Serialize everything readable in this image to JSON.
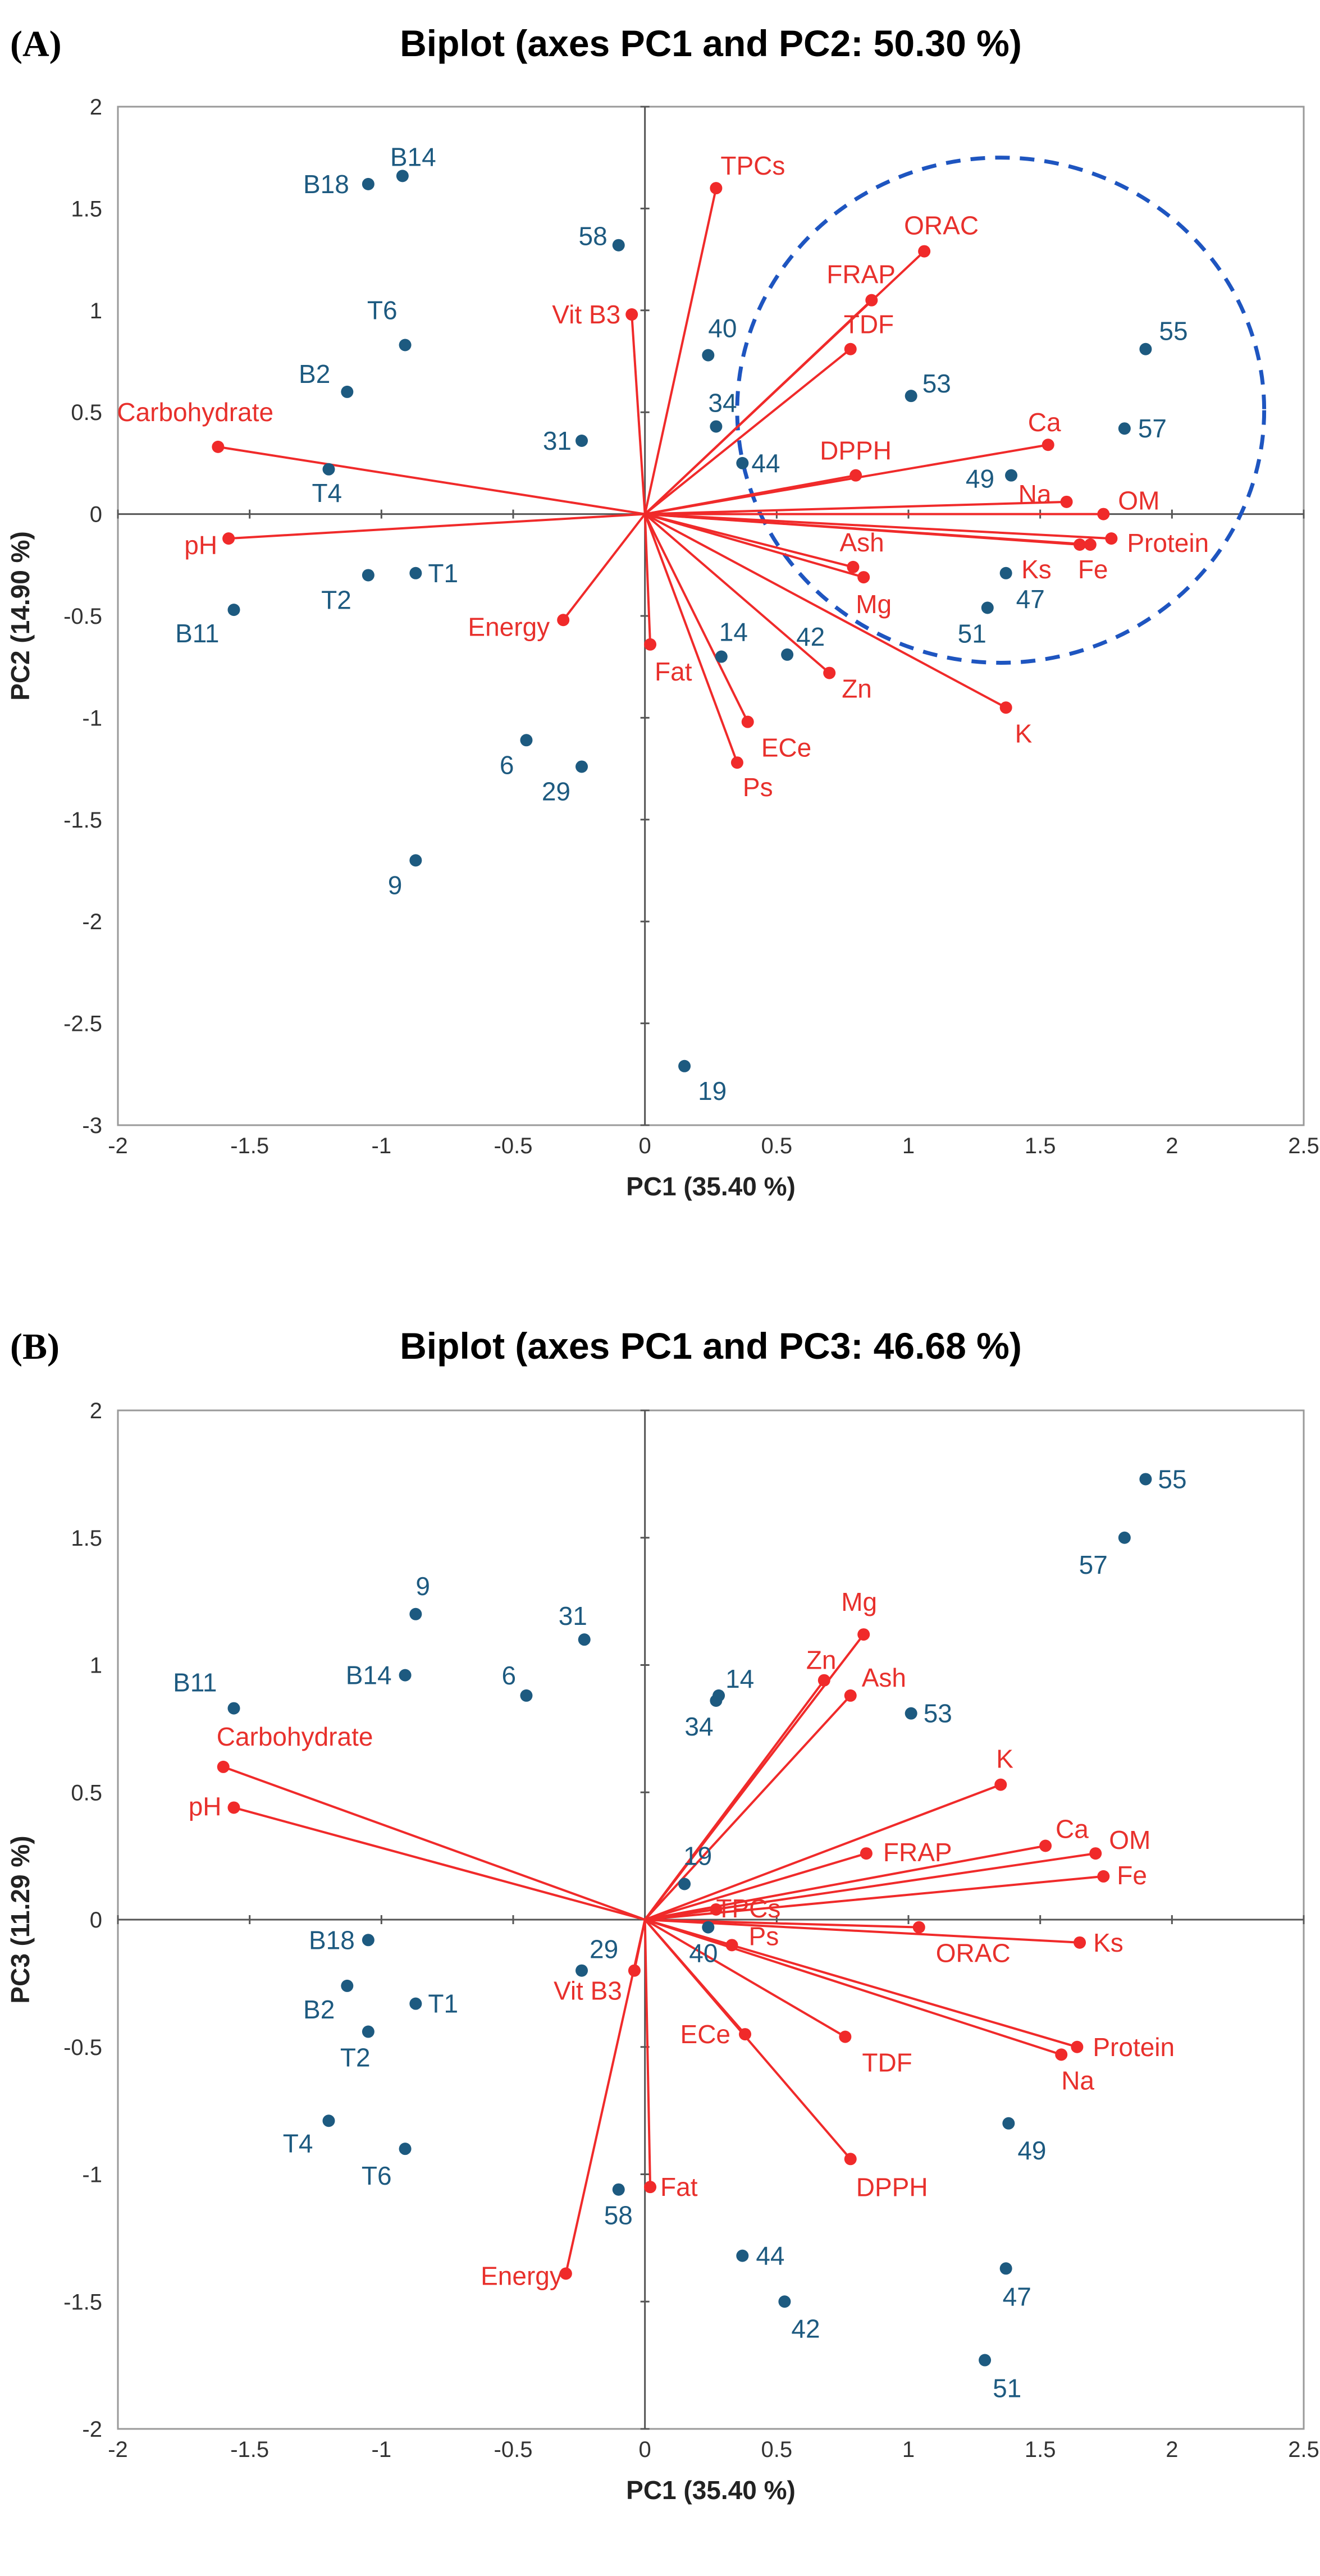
{
  "chart_data": [
    {
      "panel": "(A)",
      "type": "scatter",
      "subtype": "biplot",
      "title": "Biplot (axes PC1 and PC2: 50.30 %)",
      "xlabel": "PC1 (35.40 %)",
      "ylabel": "PC2 (14.90 %)",
      "xlim": [
        -2,
        2.5
      ],
      "ylim": [
        -3,
        2
      ],
      "xticks": [
        "-2",
        "-1.5",
        "-1",
        "-0.5",
        "0",
        "0.5",
        "1",
        "1.5",
        "2",
        "2.5"
      ],
      "yticks": [
        "-3",
        "-2.5",
        "-2",
        "-1.5",
        "-1",
        "-0.5",
        "0",
        "0.5",
        "1",
        "1.5",
        "2"
      ],
      "variables": [
        {
          "name": "TPCs",
          "x": 0.27,
          "y": 1.6
        },
        {
          "name": "ORAC",
          "x": 1.06,
          "y": 1.29
        },
        {
          "name": "FRAP",
          "x": 0.86,
          "y": 1.05
        },
        {
          "name": "TDF",
          "x": 0.78,
          "y": 0.81
        },
        {
          "name": "Vit B3",
          "x": -0.05,
          "y": 0.98
        },
        {
          "name": "Carbohydrate",
          "x": -1.62,
          "y": 0.33
        },
        {
          "name": "pH",
          "x": -1.58,
          "y": -0.12
        },
        {
          "name": "Ca",
          "x": 1.53,
          "y": 0.34
        },
        {
          "name": "DPPH",
          "x": 0.8,
          "y": 0.19
        },
        {
          "name": "Na",
          "x": 1.6,
          "y": 0.06
        },
        {
          "name": "OM",
          "x": 1.74,
          "y": 0.0
        },
        {
          "name": "Protein",
          "x": 1.77,
          "y": -0.12
        },
        {
          "name": "Ks",
          "x": 1.65,
          "y": -0.15
        },
        {
          "name": "Fe",
          "x": 1.69,
          "y": -0.15
        },
        {
          "name": "Ash",
          "x": 0.79,
          "y": -0.26
        },
        {
          "name": "Mg",
          "x": 0.83,
          "y": -0.31
        },
        {
          "name": "Zn",
          "x": 0.7,
          "y": -0.78
        },
        {
          "name": "K",
          "x": 1.37,
          "y": -0.95
        },
        {
          "name": "Energy",
          "x": -0.31,
          "y": -0.52
        },
        {
          "name": "Fat",
          "x": 0.02,
          "y": -0.64
        },
        {
          "name": "ECe",
          "x": 0.39,
          "y": -1.02
        },
        {
          "name": "Ps",
          "x": 0.35,
          "y": -1.22
        }
      ],
      "observations": [
        {
          "name": "B18",
          "x": -1.05,
          "y": 1.62
        },
        {
          "name": "B14",
          "x": -0.92,
          "y": 1.66
        },
        {
          "name": "58",
          "x": -0.1,
          "y": 1.32
        },
        {
          "name": "T6",
          "x": -0.91,
          "y": 0.83
        },
        {
          "name": "B2",
          "x": -1.13,
          "y": 0.6
        },
        {
          "name": "40",
          "x": 0.24,
          "y": 0.78
        },
        {
          "name": "34",
          "x": 0.27,
          "y": 0.43
        },
        {
          "name": "53",
          "x": 1.01,
          "y": 0.58
        },
        {
          "name": "55",
          "x": 1.9,
          "y": 0.81
        },
        {
          "name": "57",
          "x": 1.82,
          "y": 0.42
        },
        {
          "name": "31",
          "x": -0.24,
          "y": 0.36
        },
        {
          "name": "44",
          "x": 0.37,
          "y": 0.25
        },
        {
          "name": "49",
          "x": 1.39,
          "y": 0.19
        },
        {
          "name": "T4",
          "x": -1.2,
          "y": 0.22
        },
        {
          "name": "T2",
          "x": -1.05,
          "y": -0.3
        },
        {
          "name": "T1",
          "x": -0.87,
          "y": -0.29
        },
        {
          "name": "B11",
          "x": -1.56,
          "y": -0.47
        },
        {
          "name": "47",
          "x": 1.37,
          "y": -0.29
        },
        {
          "name": "51",
          "x": 1.3,
          "y": -0.46
        },
        {
          "name": "14",
          "x": 0.29,
          "y": -0.7
        },
        {
          "name": "42",
          "x": 0.54,
          "y": -0.69
        },
        {
          "name": "6",
          "x": -0.45,
          "y": -1.11
        },
        {
          "name": "29",
          "x": -0.24,
          "y": -1.24
        },
        {
          "name": "9",
          "x": -0.87,
          "y": -1.7
        },
        {
          "name": "19",
          "x": 0.15,
          "y": -2.71
        }
      ],
      "annotation": "dashed blue circle enclosing the ORAC/FRAP/TDF/Ca/Na/OM/Protein/Ks/Fe cluster and observations 53, 55, 57, 49, 47, 51"
    },
    {
      "panel": "(B)",
      "type": "scatter",
      "subtype": "biplot",
      "title": "Biplot (axes PC1 and PC3: 46.68 %)",
      "xlabel": "PC1 (35.40 %)",
      "ylabel": "PC3 (11.29 %)",
      "xlim": [
        -2,
        2.5
      ],
      "ylim": [
        -2,
        2
      ],
      "xticks": [
        "-2",
        "-1.5",
        "-1",
        "-0.5",
        "0",
        "0.5",
        "1",
        "1.5",
        "2",
        "2.5"
      ],
      "yticks": [
        "-2",
        "-1.5",
        "-1",
        "-0.5",
        "0",
        "0.5",
        "1",
        "1.5",
        "2"
      ],
      "variables": [
        {
          "name": "Mg",
          "x": 0.83,
          "y": 1.12
        },
        {
          "name": "Zn",
          "x": 0.68,
          "y": 0.94
        },
        {
          "name": "Ash",
          "x": 0.78,
          "y": 0.88
        },
        {
          "name": "K",
          "x": 1.35,
          "y": 0.53
        },
        {
          "name": "Ca",
          "x": 1.52,
          "y": 0.29
        },
        {
          "name": "OM",
          "x": 1.71,
          "y": 0.26
        },
        {
          "name": "Fe",
          "x": 1.74,
          "y": 0.17
        },
        {
          "name": "FRAP",
          "x": 0.84,
          "y": 0.26
        },
        {
          "name": "TPCs",
          "x": 0.27,
          "y": 0.04
        },
        {
          "name": "ORAC",
          "x": 1.04,
          "y": -0.03
        },
        {
          "name": "Ks",
          "x": 1.65,
          "y": -0.09
        },
        {
          "name": "Ps",
          "x": 0.33,
          "y": -0.1
        },
        {
          "name": "Protein",
          "x": 1.64,
          "y": -0.5
        },
        {
          "name": "Na",
          "x": 1.58,
          "y": -0.53
        },
        {
          "name": "TDF",
          "x": 0.76,
          "y": -0.46
        },
        {
          "name": "ECe",
          "x": 0.38,
          "y": -0.45
        },
        {
          "name": "DPPH",
          "x": 0.78,
          "y": -0.94
        },
        {
          "name": "Carbohydrate",
          "x": -1.6,
          "y": 0.6
        },
        {
          "name": "pH",
          "x": -1.56,
          "y": 0.44
        },
        {
          "name": "Vit B3",
          "x": -0.04,
          "y": -0.2
        },
        {
          "name": "Fat",
          "x": 0.02,
          "y": -1.05
        },
        {
          "name": "Energy",
          "x": -0.3,
          "y": -1.39
        }
      ],
      "observations": [
        {
          "name": "55",
          "x": 1.9,
          "y": 1.73
        },
        {
          "name": "57",
          "x": 1.82,
          "y": 1.5
        },
        {
          "name": "9",
          "x": -0.87,
          "y": 1.2
        },
        {
          "name": "31",
          "x": -0.23,
          "y": 1.1
        },
        {
          "name": "B14",
          "x": -0.91,
          "y": 0.96
        },
        {
          "name": "6",
          "x": -0.45,
          "y": 0.88
        },
        {
          "name": "B11",
          "x": -1.56,
          "y": 0.83
        },
        {
          "name": "14",
          "x": 0.28,
          "y": 0.88
        },
        {
          "name": "34",
          "x": 0.27,
          "y": 0.86
        },
        {
          "name": "53",
          "x": 1.01,
          "y": 0.81
        },
        {
          "name": "19",
          "x": 0.15,
          "y": 0.14
        },
        {
          "name": "40",
          "x": 0.24,
          "y": -0.03
        },
        {
          "name": "B18",
          "x": -1.05,
          "y": -0.08
        },
        {
          "name": "29",
          "x": -0.24,
          "y": -0.2
        },
        {
          "name": "B2",
          "x": -1.13,
          "y": -0.26
        },
        {
          "name": "T1",
          "x": -0.87,
          "y": -0.33
        },
        {
          "name": "T2",
          "x": -1.05,
          "y": -0.44
        },
        {
          "name": "T4",
          "x": -1.2,
          "y": -0.79
        },
        {
          "name": "T6",
          "x": -0.91,
          "y": -0.9
        },
        {
          "name": "49",
          "x": 1.38,
          "y": -0.8
        },
        {
          "name": "58",
          "x": -0.1,
          "y": -1.06
        },
        {
          "name": "44",
          "x": 0.37,
          "y": -1.32
        },
        {
          "name": "47",
          "x": 1.37,
          "y": -1.37
        },
        {
          "name": "42",
          "x": 0.53,
          "y": -1.5
        },
        {
          "name": "51",
          "x": 1.29,
          "y": -1.73
        }
      ]
    }
  ]
}
